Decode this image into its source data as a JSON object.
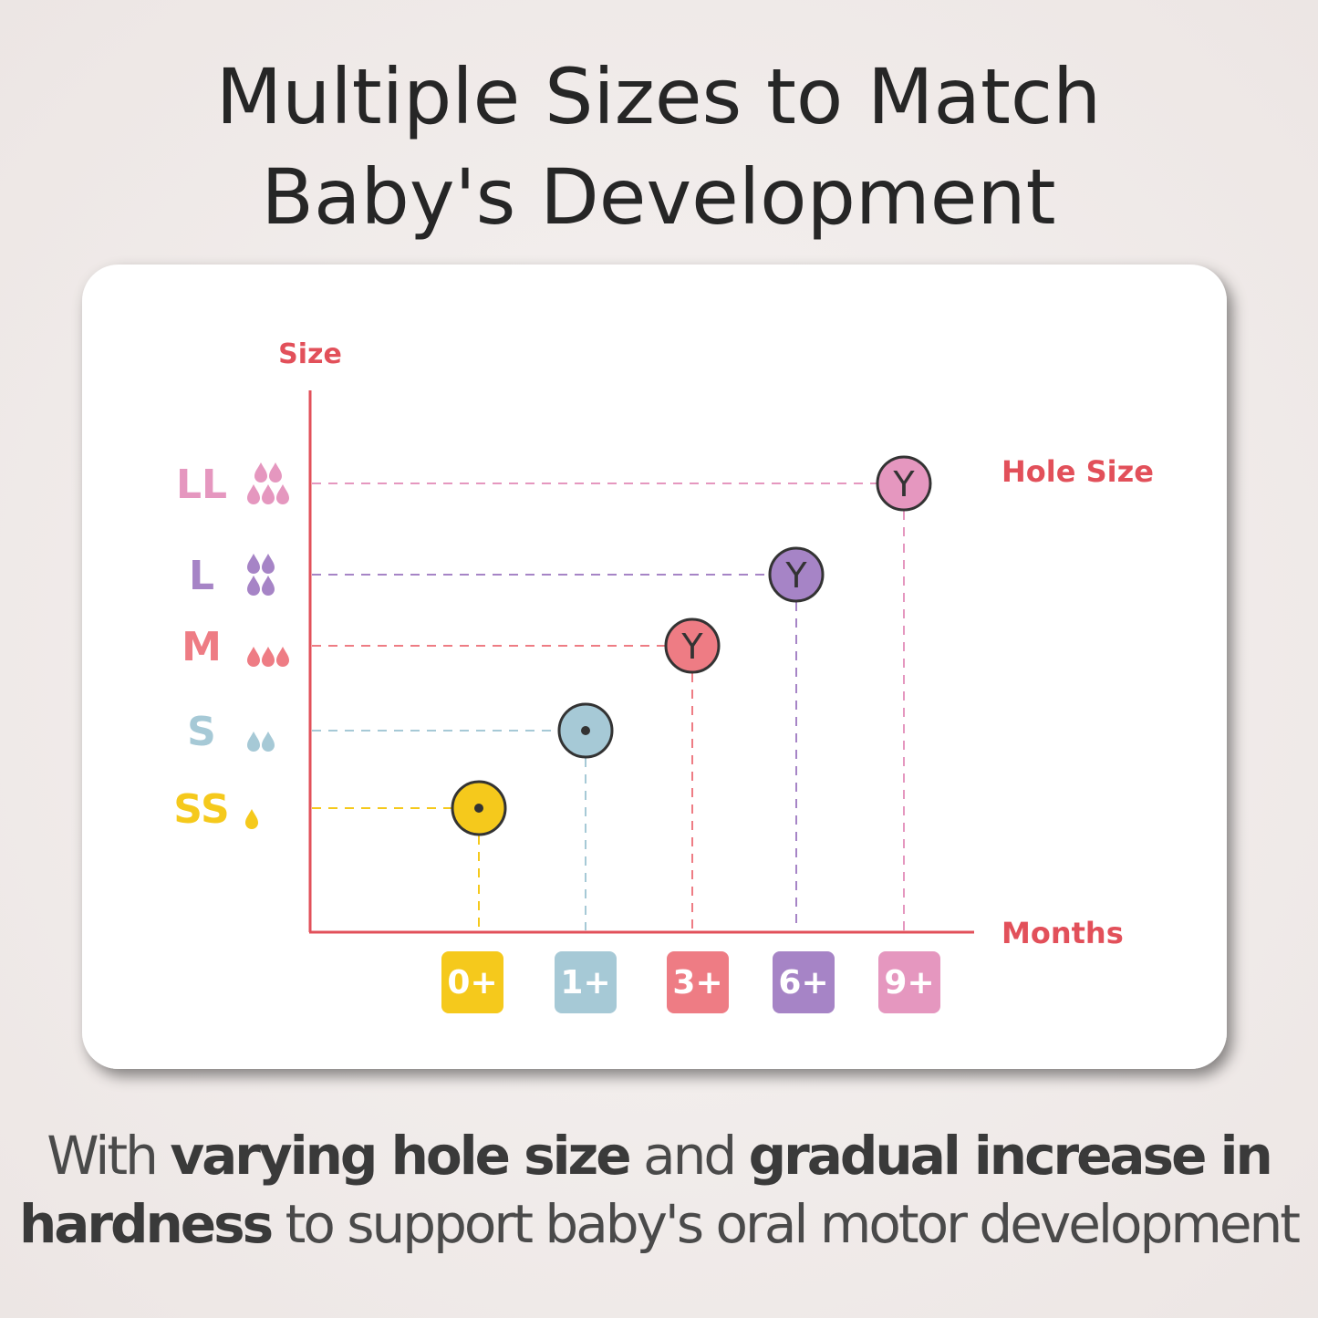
{
  "title": [
    "Multiple Sizes to Match",
    "Baby's Development"
  ],
  "diagram": {
    "y_axis_label": "Size",
    "x_axis_label": "Months",
    "hole_label": "Hole Size",
    "sizes": [
      {
        "label": "SS",
        "color": "#f5c91c",
        "drops": 1,
        "month": "0+"
      },
      {
        "label": "S",
        "color": "#a6c9d6",
        "drops": 2,
        "month": "1+"
      },
      {
        "label": "M",
        "color": "#ee7c84",
        "drops": 3,
        "month": "3+",
        "hole": "Y"
      },
      {
        "label": "L",
        "color": "#a684c6",
        "drops": 4,
        "month": "6+",
        "hole": "Y"
      },
      {
        "label": "LL",
        "color": "#e597bf",
        "drops": 5,
        "month": "9+",
        "hole": "Y"
      }
    ]
  },
  "footer": [
    [
      {
        "text": "With "
      },
      {
        "text": "varying hole size",
        "bold": true
      },
      {
        "text": " and "
      },
      {
        "text": "gradual increase in",
        "bold": true
      }
    ],
    [
      {
        "text": "hardness",
        "bold": true
      },
      {
        "text": " to support baby's oral motor development"
      }
    ]
  ]
}
